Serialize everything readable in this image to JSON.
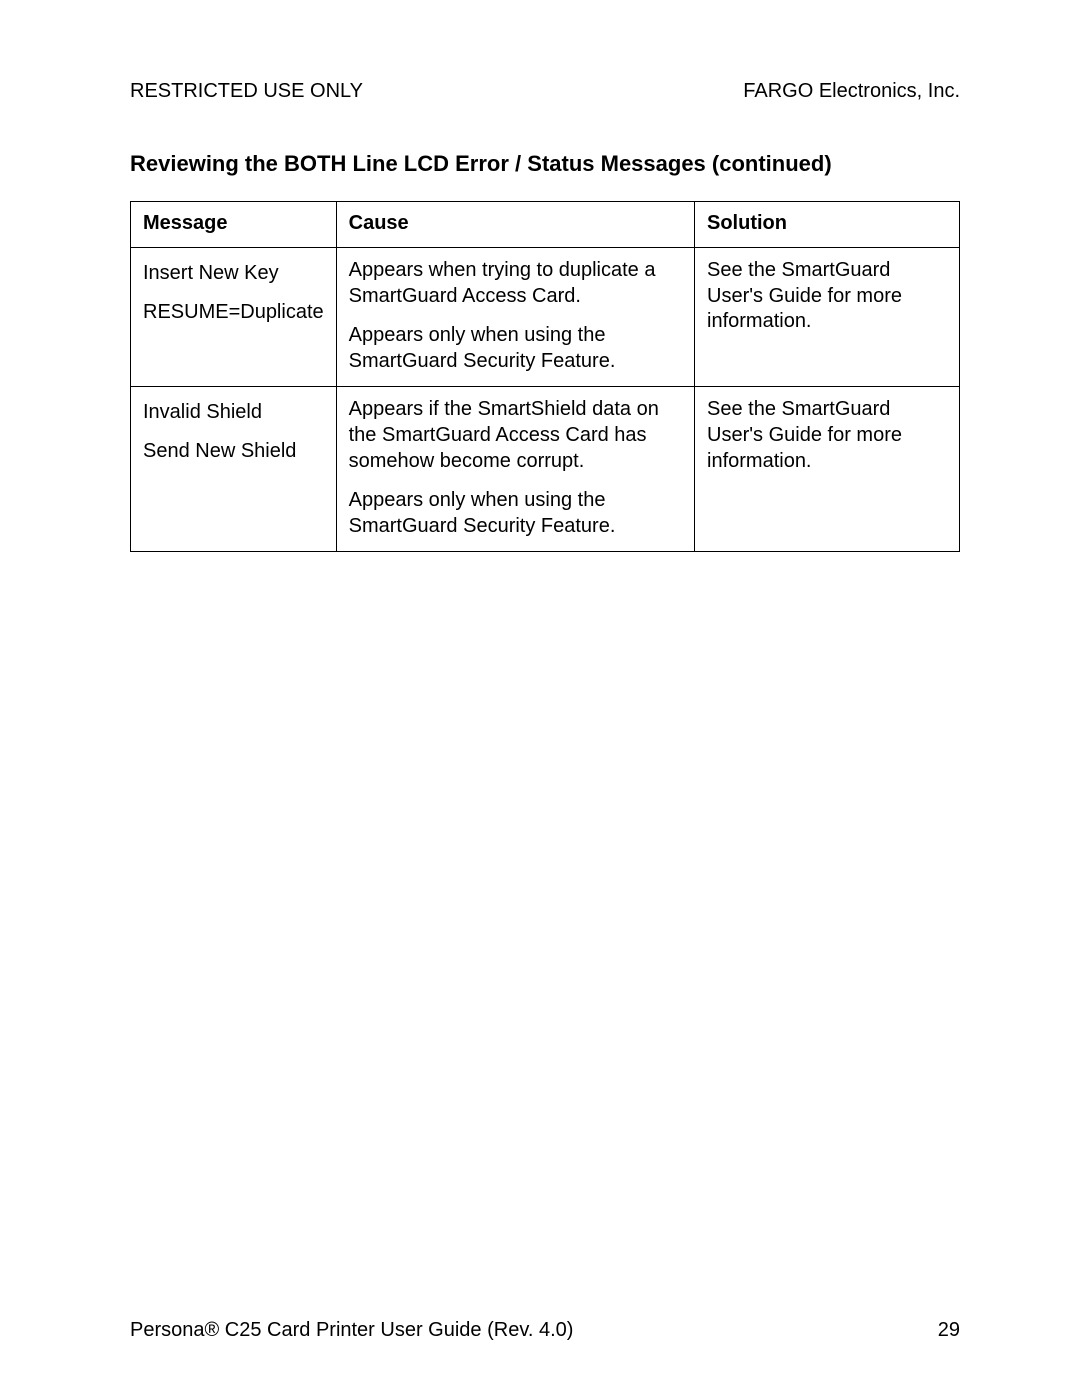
{
  "header": {
    "left": "RESTRICTED USE ONLY",
    "right": "FARGO Electronics, Inc."
  },
  "section_title": "Reviewing the BOTH Line LCD Error / Status Messages (continued)",
  "table": {
    "columns": [
      "Message",
      "Cause",
      "Solution"
    ],
    "col_widths_pct": [
      22,
      45,
      33
    ],
    "border_color": "#000000",
    "font_size_pt": 15,
    "rows": [
      {
        "message": [
          "Insert New Key",
          "RESUME=Duplicate"
        ],
        "cause": [
          "Appears when trying to duplicate a SmartGuard Access Card.",
          "Appears only when using the SmartGuard Security Feature."
        ],
        "solution": [
          "See the SmartGuard User's Guide for more information."
        ]
      },
      {
        "message": [
          "Invalid Shield",
          "Send New Shield"
        ],
        "cause": [
          "Appears if the SmartShield data on the SmartGuard Access Card has somehow become corrupt.",
          "Appears only when using the SmartGuard Security Feature."
        ],
        "solution": [
          "See the SmartGuard User's Guide for more information."
        ]
      }
    ]
  },
  "footer": {
    "left": "Persona® C25 Card Printer User Guide (Rev. 4.0)",
    "page_number": "29"
  },
  "colors": {
    "background": "#ffffff",
    "text": "#000000",
    "table_border": "#000000"
  },
  "typography": {
    "body_font": "Arial",
    "body_size_pt": 15,
    "title_size_pt": 16,
    "title_weight": "bold"
  }
}
